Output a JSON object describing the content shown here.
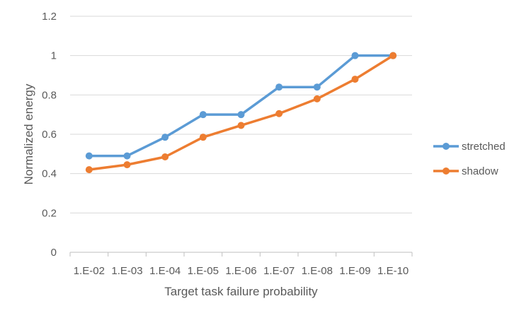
{
  "chart_data": {
    "type": "line",
    "title": "",
    "xlabel": "Target task failure probability",
    "ylabel": "Normalized energy",
    "categories": [
      "1.E-02",
      "1.E-03",
      "1.E-04",
      "1.E-05",
      "1.E-06",
      "1.E-07",
      "1.E-08",
      "1.E-09",
      "1.E-10"
    ],
    "ylim": [
      0,
      1.2
    ],
    "yticks": [
      "0",
      "0.2",
      "0.4",
      "0.6",
      "0.8",
      "1",
      "1.2"
    ],
    "ytick_values": [
      0,
      0.2,
      0.4,
      0.6,
      0.8,
      1,
      1.2
    ],
    "grid": "horizontal",
    "legend_position": "right",
    "series": [
      {
        "name": "stretched",
        "color": "#5b9bd5",
        "values": [
          0.49,
          0.49,
          0.585,
          0.7,
          0.7,
          0.84,
          0.84,
          1.0,
          1.0
        ]
      },
      {
        "name": "shadow",
        "color": "#ed7d31",
        "values": [
          0.42,
          0.445,
          0.485,
          0.585,
          0.645,
          0.705,
          0.78,
          0.88,
          1.0
        ]
      }
    ]
  }
}
